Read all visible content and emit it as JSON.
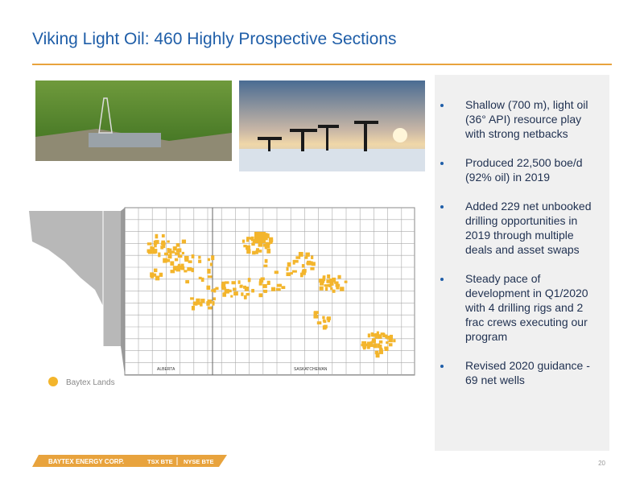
{
  "header": {
    "title": "Viking Light Oil:  460 Highly Prospective Sections"
  },
  "bullets": [
    {
      "lines": [
        "Shallow (700 m), light oil",
        "(36° API) resource play",
        "with strong netbacks"
      ]
    },
    {
      "lines": [
        "Produced 22,500 boe/d",
        "(92% oil) in 2019"
      ]
    },
    {
      "lines": [
        "Added 229 net unbooked",
        "drilling opportunities in",
        "2019 through multiple",
        "deals and asset swaps"
      ]
    },
    {
      "lines": [
        "Steady pace of",
        "development in Q1/2020",
        "with 4 drilling rigs and 2",
        "frac crews executing our",
        "program"
      ]
    },
    {
      "lines": [
        "Revised 2020 guidance -",
        "69 net wells"
      ]
    }
  ],
  "map": {
    "labels": [
      "ALBERTA",
      "SASKATCHEWAN"
    ],
    "legend": "Baytex Lands"
  },
  "footer": {
    "company": "BAYTEX ENERGY CORP.",
    "tsx": "TSX BTE",
    "nyse": "NYSE BTE",
    "page": "20"
  }
}
